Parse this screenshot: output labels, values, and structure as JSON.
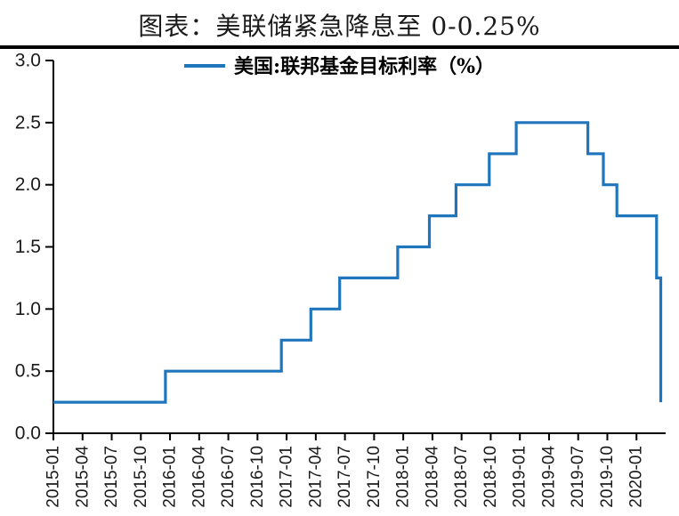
{
  "header": {
    "title": "图表：美联储紧急降息至 0-0.25%",
    "divider_color": "#000000"
  },
  "chart_data": {
    "type": "line",
    "step": true,
    "title": "图表：美联储紧急降息至 0-0.25%",
    "grid": false,
    "legend": {
      "position": "top-center",
      "entries": [
        "美国:联邦基金目标利率（%）"
      ]
    },
    "series": [
      {
        "name": "美国:联邦基金目标利率（%）",
        "color": "#2076bc",
        "step_points": [
          {
            "date": "2015-01-01",
            "value": 0.25
          },
          {
            "date": "2015-12-17",
            "value": 0.5
          },
          {
            "date": "2016-12-15",
            "value": 0.75
          },
          {
            "date": "2017-03-16",
            "value": 1.0
          },
          {
            "date": "2017-06-15",
            "value": 1.25
          },
          {
            "date": "2017-12-14",
            "value": 1.5
          },
          {
            "date": "2018-03-22",
            "value": 1.75
          },
          {
            "date": "2018-06-14",
            "value": 2.0
          },
          {
            "date": "2018-09-27",
            "value": 2.25
          },
          {
            "date": "2018-12-20",
            "value": 2.5
          },
          {
            "date": "2019-08-01",
            "value": 2.25
          },
          {
            "date": "2019-09-19",
            "value": 2.0
          },
          {
            "date": "2019-10-31",
            "value": 1.75
          },
          {
            "date": "2020-03-03",
            "value": 1.25
          },
          {
            "date": "2020-03-16",
            "value": 0.25
          }
        ]
      }
    ],
    "x_axis": {
      "start_month": "2015-01",
      "end_month": "2020-04",
      "tick_interval_months": 3,
      "tick_labels": [
        "2015-01",
        "2015-04",
        "2015-07",
        "2015-10",
        "2016-01",
        "2016-04",
        "2016-07",
        "2016-10",
        "2017-01",
        "2017-04",
        "2017-07",
        "2017-10",
        "2018-01",
        "2018-04",
        "2018-07",
        "2018-10",
        "2019-01",
        "2019-04",
        "2019-07",
        "2019-10",
        "2020-01"
      ]
    },
    "y_axis": {
      "min": 0,
      "max": 3,
      "tick_labels": [
        "0.0",
        "0.5",
        "1.0",
        "1.5",
        "2.0",
        "2.5",
        "3.0"
      ],
      "tick_values": [
        0.0,
        0.5,
        1.0,
        1.5,
        2.0,
        2.5,
        3.0
      ]
    },
    "axis_color": "#000000",
    "text_color": "#1a1a1a"
  }
}
